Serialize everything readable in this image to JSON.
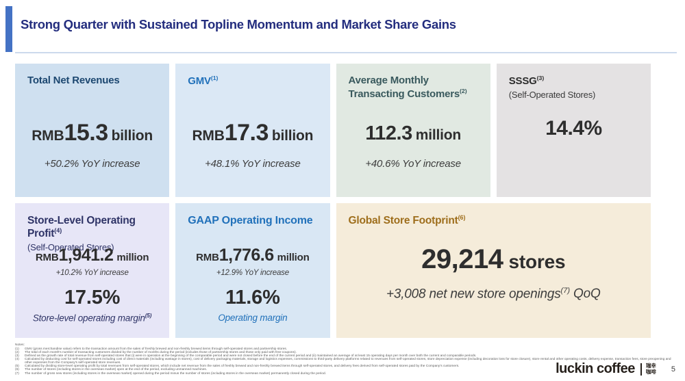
{
  "slide": {
    "title": "Strong Quarter with Sustained Topline Momentum and Market Share Gains"
  },
  "colors": {
    "accent_bar": "#4472c4",
    "title_text": "#232d7e",
    "revenues_card_bg": "#cfe0f0",
    "gmv_card_bg": "#dbe8f5",
    "customers_card_bg": "#e1e9e2",
    "sssg_card_bg": "#e4e2e3",
    "store_profit_card_bg": "#e7e6f7",
    "gaap_card_bg": "#d9e7f4",
    "footprint_card_bg": "#f5ecda",
    "blue_accent": "#2171ba",
    "gold_accent": "#9e6e1c"
  },
  "cards": {
    "top": [
      {
        "title": "Total Net Revenues",
        "value_prefix": "RMB",
        "value": "15.3",
        "value_suffix": "billion",
        "change": "+50.2% YoY increase"
      },
      {
        "title": "GMV",
        "title_sup": "(1)",
        "value_prefix": "RMB",
        "value": "17.3",
        "value_suffix": "billion",
        "change": "+48.1% YoY increase"
      },
      {
        "title": "Average Monthly Transacting Customers",
        "title_sup": "(2)",
        "value": "112.3",
        "value_suffix": "million",
        "change": "+40.6% YoY increase"
      },
      {
        "title": "SSSG",
        "title_sup": "(3)",
        "subtitle": "(Self-Operated Stores)",
        "value": "14.4%"
      }
    ],
    "bottom": [
      {
        "title": "Store-Level Operating Profit",
        "title_sup": "(4)",
        "subtitle": "(Self-Operated Stores)",
        "value_prefix": "RMB",
        "value": "1,941.2",
        "value_suffix": "million",
        "change": "+10.2% YoY increase",
        "margin_value": "17.5%",
        "margin_label": "Store-level operating margin",
        "margin_label_sup": "(5)"
      },
      {
        "title": "GAAP Operating Income",
        "value_prefix": "RMB",
        "value": "1,776.6",
        "value_suffix": "million",
        "change": "+12.9% YoY increase",
        "margin_value": "11.6%",
        "margin_label": "Operating margin"
      },
      {
        "title": "Global Store Footprint",
        "title_sup": "(6)",
        "value": "29,214",
        "value_suffix": "stores",
        "change": "+3,008 net new store openings",
        "change_sup": "(7)",
        "change_suffix": "QoQ"
      }
    ]
  },
  "notes": {
    "heading": "Notes:",
    "items": [
      {
        "num": "(1)",
        "text": "GMV (gross merchandise value) refers to the transaction amount from the sales of freshly brewed and non-freshly brewed items through self-operated stores and partnership stores."
      },
      {
        "num": "(2)",
        "text": "The total of each month's number of transacting customers divided by the number of months during the period (includes those of partnership stores and those only paid with free-coupons)."
      },
      {
        "num": "(3)",
        "text": "Defined as the growth rate of total revenue from self-operated stores that (i) were in operation at the beginning of the comparable period and were not closed before the end of the current period and (ii) maintained an average of at least 15 operating days per month over both the current and comparable periods."
      },
      {
        "num": "(4)",
        "text": "Calculated by deducting cost for self-operated stores including cost of direct materials (including wastage in stores), cost of delivery packaging materials, storage and logistics expenses, commissions to third-party delivery platforms related to revenues from self-operated stores, store depreciation expense (including decoration loss for store closure), store rental and other operating costs, delivery expense, transaction fees, store preopening and other expenses from the Company's self-operated store revenues."
      },
      {
        "num": "(5)",
        "text": "Calculated by dividing store-level operating profit by total revenues from self-operated stores, which include net revenue from the sales of freshly brewed and non-freshly brewed items through self-operated stores, and delivery fees derived from self-operated stores paid by the Company's customers."
      },
      {
        "num": "(6)",
        "text": "The number of stores (including stores in the overseas market) open at the end of the period, excluding unmanned machines."
      },
      {
        "num": "(7)",
        "text": "The number of gross new stores (including stores in the overseas market) opened during the period minus the number of stores (including stores in the overseas market) permanently closed during the period."
      }
    ]
  },
  "footer": {
    "brand": "luckin coffee",
    "brand_cn_line1": "瑞幸",
    "brand_cn_line2": "咖啡",
    "page_number": "5"
  }
}
